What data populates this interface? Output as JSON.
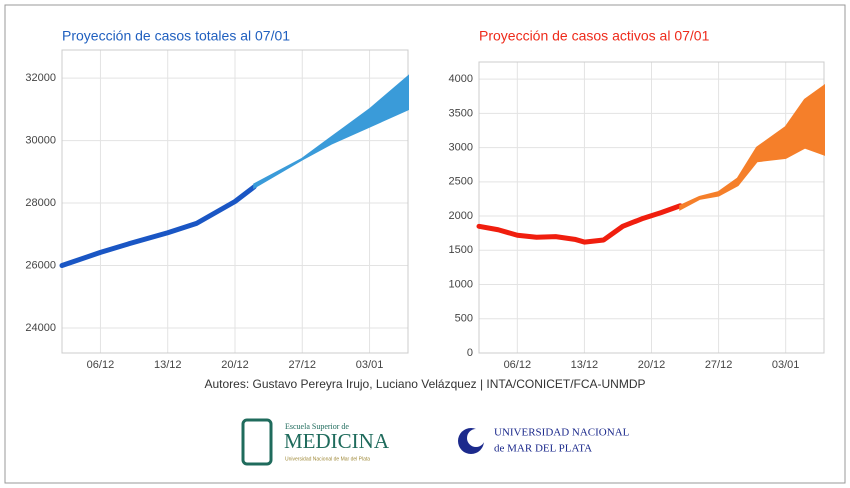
{
  "chart_data": [
    {
      "type": "line",
      "title": "Proyección de casos totales al 07/01",
      "title_color": "#1f5fbf",
      "xlim": [
        "02/12",
        "07/01"
      ],
      "xticks": [
        "06/12",
        "13/12",
        "20/12",
        "27/12",
        "03/01"
      ],
      "ylim": [
        23200,
        32900
      ],
      "yticks": [
        24000,
        26000,
        28000,
        30000,
        32000
      ],
      "grid": true,
      "series": [
        {
          "color": "#1a56c4",
          "x": [
            "02/12",
            "06/12",
            "09/12",
            "13/12",
            "16/12",
            "20/12",
            "22/12"
          ],
          "values": [
            26000,
            26420,
            26700,
            27050,
            27350,
            28050,
            28520
          ]
        }
      ],
      "band": {
        "color": "#3a9bd9",
        "x": [
          "22/12",
          "27/12",
          "30/12",
          "03/01",
          "07/01"
        ],
        "lower": [
          28500,
          29400,
          29900,
          30450,
          31000
        ],
        "upper": [
          28600,
          29420,
          30100,
          31000,
          32050
        ]
      }
    },
    {
      "type": "line",
      "title": "Proyección de casos activos al 07/01",
      "title_color": "#ee2a1a",
      "xlim": [
        "02/12",
        "07/01"
      ],
      "xticks": [
        "06/12",
        "13/12",
        "20/12",
        "27/12",
        "03/01"
      ],
      "ylim": [
        0,
        4250
      ],
      "yticks": [
        0,
        500,
        1000,
        1500,
        2000,
        2500,
        3000,
        3500,
        4000
      ],
      "grid": true,
      "series": [
        {
          "color": "#f01e0e",
          "x": [
            "02/12",
            "04/12",
            "06/12",
            "08/12",
            "10/12",
            "12/12",
            "13/12",
            "15/12",
            "17/12",
            "19/12",
            "21/12",
            "23/12"
          ],
          "values": [
            1850,
            1800,
            1720,
            1690,
            1700,
            1660,
            1620,
            1650,
            1850,
            1960,
            2050,
            2150
          ]
        }
      ],
      "band": {
        "color": "#f57f2a",
        "x": [
          "23/12",
          "25/12",
          "27/12",
          "29/12",
          "31/12",
          "03/01",
          "05/01",
          "07/01"
        ],
        "lower": [
          2100,
          2250,
          2300,
          2450,
          2800,
          2850,
          3000,
          2900
        ],
        "upper": [
          2150,
          2280,
          2350,
          2550,
          3000,
          3300,
          3700,
          3900
        ]
      }
    }
  ],
  "authors": "Autores: Gustavo Pereyra Irujo, Luciano Velázquez | INTA/CONICET/FCA-UNMDP",
  "logos": [
    {
      "line1": "Escuela Superior de",
      "line2": "MEDICINA",
      "line3": "Universidad Nacional de Mar del Plata"
    },
    {
      "line1": "UNIVERSIDAD NACIONAL",
      "line2": "de MAR DEL PLATA"
    }
  ]
}
